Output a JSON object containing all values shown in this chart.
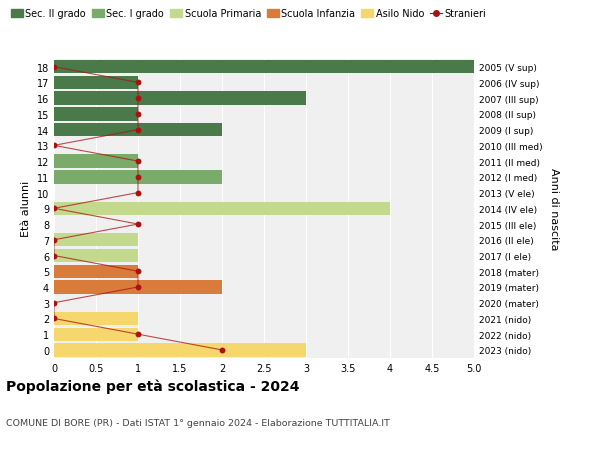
{
  "ages": [
    18,
    17,
    16,
    15,
    14,
    13,
    12,
    11,
    10,
    9,
    8,
    7,
    6,
    5,
    4,
    3,
    2,
    1,
    0
  ],
  "right_labels": [
    "2005 (V sup)",
    "2006 (IV sup)",
    "2007 (III sup)",
    "2008 (II sup)",
    "2009 (I sup)",
    "2010 (III med)",
    "2011 (II med)",
    "2012 (I med)",
    "2013 (V ele)",
    "2014 (IV ele)",
    "2015 (III ele)",
    "2016 (II ele)",
    "2017 (I ele)",
    "2018 (mater)",
    "2019 (mater)",
    "2020 (mater)",
    "2021 (nido)",
    "2022 (nido)",
    "2023 (nido)"
  ],
  "bar_values": [
    5.0,
    1.0,
    3.0,
    1.0,
    2.0,
    0.0,
    1.0,
    2.0,
    0.0,
    4.0,
    0.0,
    1.0,
    1.0,
    1.0,
    2.0,
    0.0,
    1.0,
    1.0,
    3.0
  ],
  "bar_colors": [
    "#4a7a4a",
    "#4a7a4a",
    "#4a7a4a",
    "#4a7a4a",
    "#4a7a4a",
    "#7aab6a",
    "#7aab6a",
    "#7aab6a",
    "#c2d98e",
    "#c2d98e",
    "#c2d98e",
    "#c2d98e",
    "#c2d98e",
    "#d97b3a",
    "#d97b3a",
    "#d97b3a",
    "#f5d76e",
    "#f5d76e",
    "#f5d76e"
  ],
  "stranieri_x": [
    0,
    1,
    1,
    1,
    1,
    0,
    1,
    1,
    1,
    0,
    1,
    0,
    0,
    1,
    1,
    0,
    0,
    1,
    2
  ],
  "color_sec2": "#4a7a4a",
  "color_sec1": "#7aab6a",
  "color_prim": "#c2d98e",
  "color_inf": "#d97b3a",
  "color_nido": "#f5d76e",
  "color_stranieri": "#aa1111",
  "title": "Popolazione per età scolastica - 2024",
  "subtitle": "COMUNE DI BORE (PR) - Dati ISTAT 1° gennaio 2024 - Elaborazione TUTTITALIA.IT",
  "ylabel_left": "Età alunni",
  "ylabel_right": "Anni di nascita",
  "xlim": [
    0,
    5.0
  ],
  "xticks": [
    0,
    0.5,
    1.0,
    1.5,
    2.0,
    2.5,
    3.0,
    3.5,
    4.0,
    4.5,
    5.0
  ],
  "xtick_labels": [
    "0",
    "0.5",
    "1",
    "1.5",
    "2",
    "2.5",
    "3",
    "3.5",
    "4",
    "4.5",
    "5.0"
  ],
  "legend_labels": [
    "Sec. II grado",
    "Sec. I grado",
    "Scuola Primaria",
    "Scuola Infanzia",
    "Asilo Nido",
    "Stranieri"
  ],
  "background_color": "#ffffff",
  "plot_bg_color": "#f0f0f0"
}
